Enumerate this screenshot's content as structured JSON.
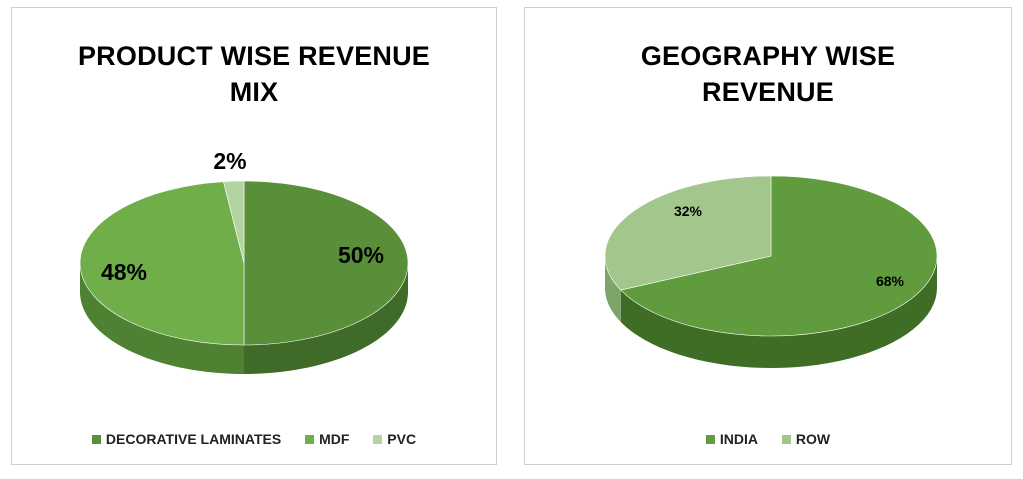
{
  "chart_data": [
    {
      "type": "pie",
      "title": "PRODUCT WISE REVENUE MIX",
      "slices": [
        {
          "name": "DECORATIVE LAMINATES",
          "value": 50,
          "label": "50%",
          "color": "#5a8f3a",
          "side": "#3f6a27"
        },
        {
          "name": "MDF",
          "value": 48,
          "label": "48%",
          "color": "#6fae49",
          "side": "#4e8131"
        },
        {
          "name": "PVC",
          "value": 2,
          "label": "2%",
          "color": "#b3d4a0",
          "side": "#8fb27c"
        }
      ],
      "legend_position": "bottom"
    },
    {
      "type": "pie",
      "title": "GEOGRAPHY WISE REVENUE",
      "slices": [
        {
          "name": "INDIA",
          "value": 68,
          "label": "68%",
          "color": "#609c3d",
          "side": "#3f6d26"
        },
        {
          "name": "ROW",
          "value": 32,
          "label": "32%",
          "color": "#a2c68c",
          "side": "#7ea46a"
        }
      ],
      "legend_position": "bottom"
    }
  ]
}
